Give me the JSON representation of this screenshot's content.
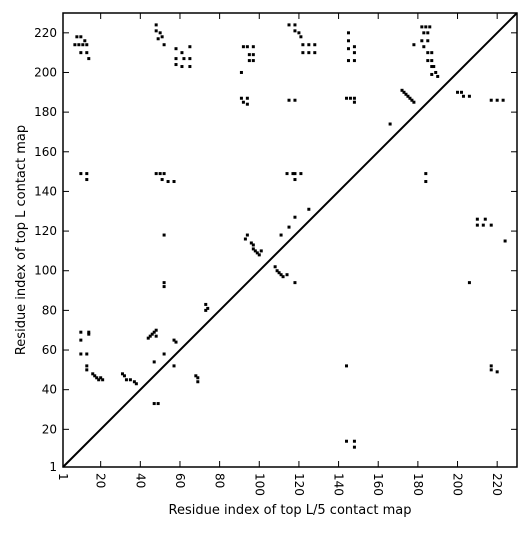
{
  "chart_data": {
    "type": "scatter",
    "title": "",
    "xlabel": "Residue index of top L/5 contact map",
    "ylabel": "Residue index of top L contact map",
    "xlim": [
      1,
      230
    ],
    "ylim": [
      1,
      230
    ],
    "grid": false,
    "diagonal": true,
    "x_ticks": [
      1,
      20,
      40,
      60,
      80,
      100,
      120,
      140,
      160,
      180,
      200,
      220
    ],
    "y_ticks": [
      1,
      20,
      40,
      60,
      80,
      100,
      120,
      140,
      160,
      180,
      200,
      220
    ],
    "series": [
      {
        "color": "#000000",
        "points": [
          [
            8,
            218
          ],
          [
            10,
            218
          ],
          [
            12,
            216
          ],
          [
            7,
            214
          ],
          [
            9,
            214
          ],
          [
            11,
            214
          ],
          [
            13,
            214
          ],
          [
            10,
            210
          ],
          [
            13,
            210
          ],
          [
            14,
            207
          ],
          [
            48,
            224
          ],
          [
            48,
            221
          ],
          [
            50,
            220
          ],
          [
            49,
            217
          ],
          [
            51,
            218
          ],
          [
            52,
            214
          ],
          [
            58,
            212
          ],
          [
            61,
            210
          ],
          [
            65,
            213
          ],
          [
            58,
            207
          ],
          [
            62,
            207
          ],
          [
            65,
            207
          ],
          [
            58,
            204
          ],
          [
            61,
            203
          ],
          [
            65,
            203
          ],
          [
            92,
            213
          ],
          [
            94,
            213
          ],
          [
            97,
            213
          ],
          [
            95,
            209
          ],
          [
            97,
            209
          ],
          [
            95,
            206
          ],
          [
            97,
            206
          ],
          [
            91,
            200
          ],
          [
            91,
            187
          ],
          [
            92,
            185
          ],
          [
            94,
            187
          ],
          [
            94,
            184
          ],
          [
            115,
            224
          ],
          [
            118,
            224
          ],
          [
            118,
            221
          ],
          [
            120,
            220
          ],
          [
            121,
            218
          ],
          [
            122,
            214
          ],
          [
            125,
            214
          ],
          [
            128,
            214
          ],
          [
            122,
            210
          ],
          [
            125,
            210
          ],
          [
            128,
            210
          ],
          [
            115,
            186
          ],
          [
            118,
            186
          ],
          [
            145,
            220
          ],
          [
            145,
            216
          ],
          [
            148,
            213
          ],
          [
            145,
            212
          ],
          [
            148,
            210
          ],
          [
            145,
            206
          ],
          [
            148,
            206
          ],
          [
            144,
            187
          ],
          [
            146,
            187
          ],
          [
            148,
            187
          ],
          [
            148,
            185
          ],
          [
            178,
            214
          ],
          [
            182,
            223
          ],
          [
            184,
            223
          ],
          [
            186,
            223
          ],
          [
            183,
            220
          ],
          [
            185,
            220
          ],
          [
            182,
            216
          ],
          [
            185,
            216
          ],
          [
            183,
            213
          ],
          [
            185,
            210
          ],
          [
            187,
            210
          ],
          [
            185,
            206
          ],
          [
            187,
            206
          ],
          [
            187,
            203
          ],
          [
            188,
            203
          ],
          [
            189,
            200
          ],
          [
            187,
            199
          ],
          [
            190,
            198
          ],
          [
            172,
            191
          ],
          [
            173,
            190
          ],
          [
            174,
            189
          ],
          [
            175,
            188
          ],
          [
            176,
            187
          ],
          [
            177,
            186
          ],
          [
            178,
            185
          ],
          [
            200,
            190
          ],
          [
            202,
            190
          ],
          [
            203,
            188
          ],
          [
            206,
            188
          ],
          [
            217,
            186
          ],
          [
            220,
            186
          ],
          [
            223,
            186
          ],
          [
            166,
            174
          ],
          [
            10,
            149
          ],
          [
            13,
            149
          ],
          [
            13,
            146
          ],
          [
            48,
            149
          ],
          [
            50,
            149
          ],
          [
            52,
            149
          ],
          [
            51,
            146
          ],
          [
            54,
            145
          ],
          [
            57,
            145
          ],
          [
            114,
            149
          ],
          [
            117,
            149
          ],
          [
            118,
            149
          ],
          [
            121,
            149
          ],
          [
            118,
            146
          ],
          [
            118,
            127
          ],
          [
            125,
            131
          ],
          [
            115,
            122
          ],
          [
            111,
            118
          ],
          [
            94,
            118
          ],
          [
            93,
            116
          ],
          [
            96,
            114
          ],
          [
            97,
            113
          ],
          [
            97,
            111
          ],
          [
            98,
            110
          ],
          [
            99,
            109
          ],
          [
            100,
            108
          ],
          [
            101,
            110
          ],
          [
            108,
            102
          ],
          [
            109,
            100
          ],
          [
            110,
            99
          ],
          [
            111,
            98
          ],
          [
            112,
            97
          ],
          [
            114,
            98
          ],
          [
            118,
            94
          ],
          [
            52,
            118
          ],
          [
            52,
            94
          ],
          [
            52,
            92
          ],
          [
            73,
            83
          ],
          [
            73,
            80
          ],
          [
            74,
            81
          ],
          [
            184,
            149
          ],
          [
            184,
            145
          ],
          [
            210,
            126
          ],
          [
            210,
            123
          ],
          [
            213,
            123
          ],
          [
            217,
            123
          ],
          [
            214,
            126
          ],
          [
            224,
            115
          ],
          [
            206,
            94
          ],
          [
            217,
            52
          ],
          [
            217,
            50
          ],
          [
            220,
            49
          ],
          [
            144,
            52
          ],
          [
            144,
            14
          ],
          [
            148,
            14
          ],
          [
            148,
            11
          ],
          [
            10,
            69
          ],
          [
            14,
            69
          ],
          [
            14,
            68
          ],
          [
            10,
            65
          ],
          [
            10,
            58
          ],
          [
            13,
            58
          ],
          [
            13,
            52
          ],
          [
            13,
            50
          ],
          [
            16,
            48
          ],
          [
            17,
            47
          ],
          [
            18,
            46
          ],
          [
            19,
            45
          ],
          [
            20,
            46
          ],
          [
            21,
            45
          ],
          [
            31,
            48
          ],
          [
            32,
            47
          ],
          [
            33,
            45
          ],
          [
            35,
            45
          ],
          [
            37,
            44
          ],
          [
            38,
            43
          ],
          [
            44,
            66
          ],
          [
            45,
            67
          ],
          [
            46,
            68
          ],
          [
            47,
            69
          ],
          [
            48,
            70
          ],
          [
            48,
            67
          ],
          [
            47,
            54
          ],
          [
            52,
            58
          ],
          [
            57,
            52
          ],
          [
            57,
            65
          ],
          [
            58,
            64
          ],
          [
            68,
            47
          ],
          [
            69,
            46
          ],
          [
            69,
            44
          ],
          [
            47,
            33
          ],
          [
            49,
            33
          ]
        ]
      }
    ]
  }
}
